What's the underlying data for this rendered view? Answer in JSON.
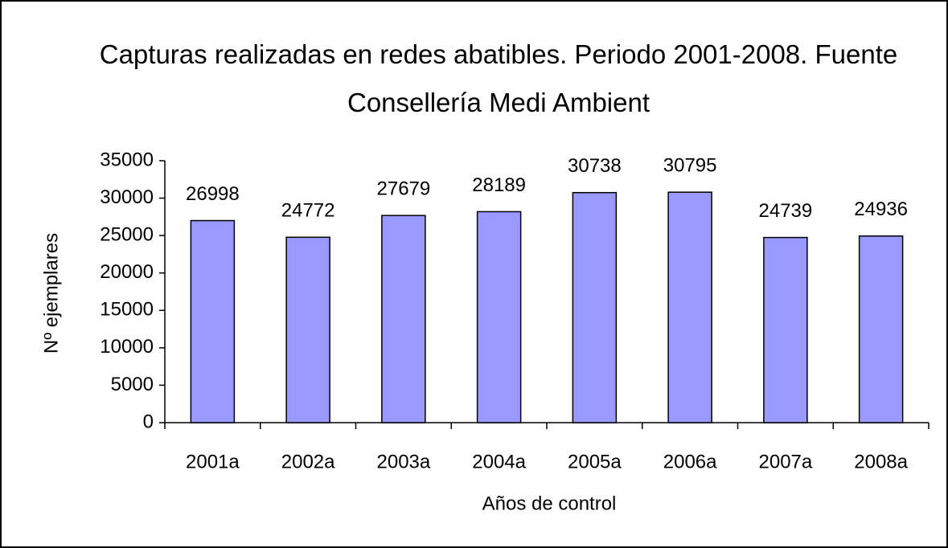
{
  "chart_data": {
    "type": "bar",
    "title": "Capturas realizadas en redes abatibles. Periodo 2001-2008. Fuente Consellería Medi Ambient",
    "x_label": "Años de control",
    "y_label": "Nº ejemplares",
    "categories": [
      "2001a",
      "2002a",
      "2003a",
      "2004a",
      "2005a",
      "2006a",
      "2007a",
      "2008a"
    ],
    "values": [
      26998,
      24772,
      27679,
      28189,
      30738,
      30795,
      24739,
      24936
    ],
    "color": "#9999ff",
    "ylim": [
      0,
      35000
    ],
    "yticks": [
      0,
      5000,
      10000,
      15000,
      20000,
      25000,
      30000,
      35000
    ],
    "grid": false
  }
}
